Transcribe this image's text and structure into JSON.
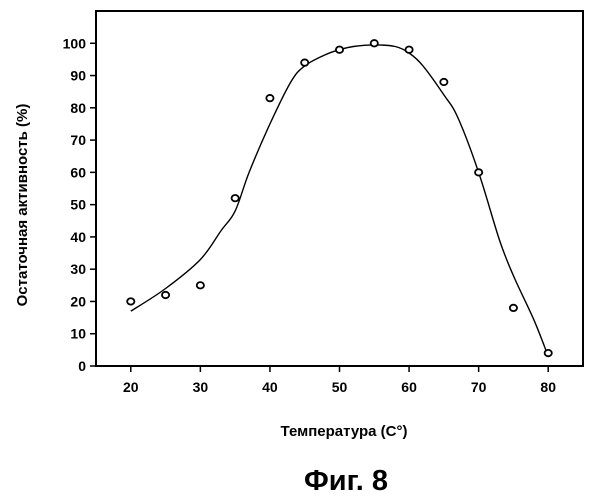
{
  "chart_data": {
    "type": "scatter",
    "xlabel": "Температура (С°)",
    "ylabel": "Остаточная активность (%)",
    "xlim": [
      15,
      85
    ],
    "ylim": [
      0,
      110
    ],
    "xticks": [
      "20",
      "30",
      "40",
      "50",
      "60",
      "70",
      "80"
    ],
    "yticks": [
      "0",
      "10",
      "20",
      "30",
      "40",
      "50",
      "60",
      "70",
      "80",
      "90",
      "100"
    ],
    "grid": false,
    "points": {
      "x": [
        20,
        25,
        30,
        35,
        40,
        45,
        50,
        55,
        60,
        65,
        70,
        75,
        80
      ],
      "y": [
        20,
        22,
        25,
        52,
        83,
        94,
        98,
        100,
        98,
        88,
        60,
        18,
        4
      ]
    },
    "fit_curve": {
      "x": [
        20,
        25,
        30,
        33,
        35,
        37,
        40,
        43,
        45,
        48,
        50,
        52,
        55,
        58,
        60,
        62,
        65,
        67,
        70,
        73,
        75,
        78,
        80
      ],
      "y": [
        17,
        24,
        33,
        42,
        48,
        60,
        75,
        88,
        93,
        96.5,
        98,
        99,
        99.5,
        99,
        97,
        93,
        84,
        77,
        60,
        39,
        28,
        14,
        3
      ]
    }
  },
  "caption": "Фиг. 8"
}
